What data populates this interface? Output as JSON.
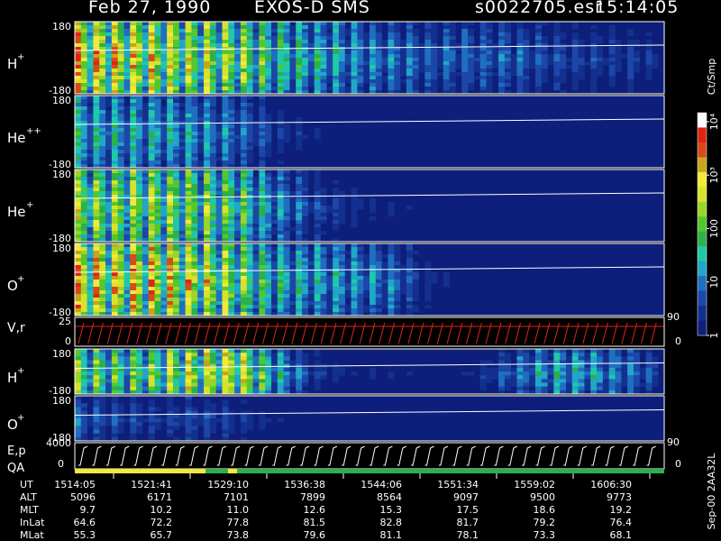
{
  "header": {
    "date": "Feb 27, 1990",
    "instrument": "EXOS-D SMS",
    "file": "s0022705.esr",
    "time": "15:14:05"
  },
  "colorbar": {
    "unit": "Ct/Smp",
    "tick_labels": [
      "1",
      "10",
      "100",
      "10³",
      "10⁴"
    ],
    "scale": "log"
  },
  "side_labels": {
    "run_id": "Sep-00 2AA32L",
    "v_right_top": "90",
    "v_right_bottom": "0",
    "qa_right_top": "90",
    "qa_right_bottom": "0"
  },
  "panels": {
    "h_plus": {
      "label": "H",
      "sup": "+",
      "ymax": "180",
      "ymin": "-180"
    },
    "he_pp": {
      "label": "He",
      "sup": "++",
      "ymax": "180",
      "ymin": "-180"
    },
    "he_plus": {
      "label": "He",
      "sup": "+",
      "ymax": "180",
      "ymin": "-180"
    },
    "o_plus": {
      "label": "O",
      "sup": "+",
      "ymax": "180",
      "ymin": "-180"
    },
    "vr": {
      "label": "V,r",
      "ymax": "25",
      "ymin": "0"
    },
    "h_plus2": {
      "label": "H",
      "sup": "+",
      "ymax": "180",
      "ymin": "-180"
    },
    "o_plus2": {
      "label": "O",
      "sup": "+",
      "ymax": "180",
      "ymin": "-180"
    },
    "ep": {
      "label": "E,p",
      "label2": "QA",
      "ymax": "4000",
      "ymin": "0"
    }
  },
  "table": {
    "rows": [
      {
        "name": "UT",
        "values": [
          "1514:05",
          "1521:41",
          "1529:10",
          "1536:38",
          "1544:06",
          "1551:34",
          "1559:02",
          "1606:30"
        ]
      },
      {
        "name": "ALT",
        "values": [
          "5096",
          "6171",
          "7101",
          "7899",
          "8564",
          "9097",
          "9500",
          "9773"
        ]
      },
      {
        "name": "MLT",
        "values": [
          "9.7",
          "10.2",
          "11.0",
          "12.6",
          "15.3",
          "17.5",
          "18.6",
          "19.2"
        ]
      },
      {
        "name": "InLat",
        "values": [
          "64.6",
          "72.2",
          "77.8",
          "81.5",
          "82.8",
          "81.7",
          "79.2",
          "76.4"
        ]
      },
      {
        "name": "MLat",
        "values": [
          "55.3",
          "65.7",
          "73.8",
          "79.6",
          "81.1",
          "78.1",
          "73.3",
          "68.1"
        ]
      }
    ]
  },
  "chart_data": {
    "type": "heatmap",
    "title": "Feb 27, 1990  EXOS-D SMS",
    "xlabel": "UT",
    "x_ticks": [
      "1514:05",
      "1521:41",
      "1529:10",
      "1536:38",
      "1544:06",
      "1551:34",
      "1559:02",
      "1606:30"
    ],
    "panels": [
      {
        "name": "H+",
        "ylim": [
          -180,
          180
        ],
        "activity": [
          0.95,
          0.9,
          0.85,
          0.8,
          0.75,
          0.55,
          0.5,
          0.4,
          0.35,
          0.3,
          0.3,
          0.3,
          0.25,
          0.2,
          0.2,
          0.15
        ]
      },
      {
        "name": "He++",
        "ylim": [
          -180,
          180
        ],
        "activity": [
          0.5,
          0.45,
          0.45,
          0.4,
          0.35,
          0.2,
          0.1,
          0.05,
          0.05,
          0.02,
          0.0,
          0.0,
          0.0,
          0.0,
          0.0,
          0.0
        ]
      },
      {
        "name": "He+",
        "ylim": [
          -180,
          180
        ],
        "activity": [
          0.75,
          0.7,
          0.75,
          0.7,
          0.65,
          0.4,
          0.25,
          0.15,
          0.1,
          0.05,
          0.02,
          0.0,
          0.0,
          0.0,
          0.0,
          0.0
        ]
      },
      {
        "name": "O+",
        "ylim": [
          -180,
          180
        ],
        "activity": [
          0.95,
          0.9,
          0.9,
          0.85,
          0.75,
          0.5,
          0.45,
          0.4,
          0.35,
          0.15,
          0.05,
          0.0,
          0.0,
          0.0,
          0.0,
          0.0
        ]
      },
      {
        "name": "H+ (2)",
        "ylim": [
          -180,
          180
        ],
        "activity": [
          0.7,
          0.65,
          0.7,
          0.85,
          0.9,
          0.5,
          0.2,
          0.1,
          0.1,
          0.05,
          0.1,
          0.3,
          0.45,
          0.45,
          0.35,
          0.2
        ]
      },
      {
        "name": "O+ (2)",
        "ylim": [
          -180,
          180
        ],
        "activity": [
          0.3,
          0.25,
          0.2,
          0.25,
          0.2,
          0.1,
          0.05,
          0.0,
          0.0,
          0.0,
          0.0,
          0.0,
          0.0,
          0.0,
          0.0,
          0.0
        ]
      }
    ]
  }
}
